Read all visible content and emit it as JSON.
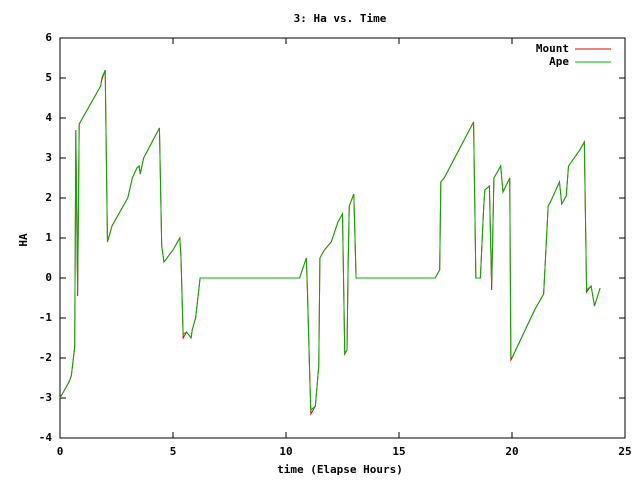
{
  "chart_data": {
    "type": "line",
    "title": "3: Ha vs. Time",
    "xlabel": "time (Elapse Hours)",
    "ylabel": "HA",
    "x": [
      0,
      0.4,
      0.5,
      0.65,
      0.7,
      0.78,
      0.85,
      0.9,
      1.5,
      1.8,
      1.85,
      2.0,
      2.1,
      2.3,
      3.0,
      3.2,
      3.4,
      3.5,
      3.55,
      3.7,
      4.4,
      4.5,
      4.6,
      5.0,
      5.3,
      5.35,
      5.45,
      5.6,
      5.8,
      5.85,
      6.0,
      6.2,
      10.6,
      10.9,
      10.95,
      11.05,
      11.1,
      11.3,
      11.45,
      11.5,
      11.6,
      11.7,
      12.0,
      12.3,
      12.5,
      12.6,
      12.7,
      12.75,
      12.8,
      13.0,
      13.1,
      16.6,
      16.8,
      16.85,
      17.0,
      18.3,
      18.4,
      18.6,
      18.75,
      18.8,
      19.0,
      19.1,
      19.2,
      19.5,
      19.6,
      19.9,
      19.95,
      20.0,
      21.0,
      21.4,
      21.6,
      21.7,
      22.1,
      22.2,
      22.4,
      22.5,
      23.0,
      23.2,
      23.3,
      23.5,
      23.65,
      23.9
    ],
    "series": [
      {
        "name": "Mount",
        "color": "#e00000",
        "values": [
          -3,
          -2.6,
          -2.45,
          -1.75,
          3.7,
          -0.45,
          3.85,
          3.9,
          4.5,
          4.8,
          4.95,
          5.2,
          0.9,
          1.3,
          2.0,
          2.5,
          2.75,
          2.8,
          2.6,
          3.0,
          3.75,
          0.8,
          0.4,
          0.7,
          1.0,
          0.55,
          -1.5,
          -1.35,
          -1.5,
          -1.3,
          -1.0,
          0,
          0,
          0.5,
          -0.4,
          -2.4,
          -3.4,
          -3.2,
          -2.2,
          0.5,
          0.6,
          0.7,
          0.9,
          1.4,
          1.6,
          -1.9,
          -1.8,
          0.35,
          1.8,
          2.1,
          0,
          0,
          0.2,
          2.4,
          2.5,
          3.9,
          0,
          0,
          1.8,
          2.2,
          2.3,
          -0.3,
          2.5,
          2.8,
          2.15,
          2.5,
          -2.05,
          -2.0,
          -0.8,
          -0.4,
          1.8,
          1.9,
          2.4,
          1.85,
          2.05,
          2.8,
          3.2,
          3.4,
          -0.35,
          -0.2,
          -0.7,
          -0.25
        ]
      },
      {
        "name": "Ape",
        "color": "#00b000",
        "values": [
          -3,
          -2.6,
          -2.45,
          -1.7,
          3.7,
          -0.4,
          3.85,
          3.9,
          4.5,
          4.8,
          5.0,
          5.2,
          0.9,
          1.3,
          2.0,
          2.5,
          2.75,
          2.8,
          2.6,
          3.0,
          3.75,
          0.8,
          0.4,
          0.7,
          1.0,
          0.6,
          -1.4,
          -1.35,
          -1.5,
          -1.3,
          -1.0,
          0,
          0,
          0.5,
          -0.3,
          -2.5,
          -3.3,
          -3.2,
          -2.2,
          0.5,
          0.6,
          0.7,
          0.9,
          1.4,
          1.6,
          -1.9,
          -1.8,
          0.4,
          1.8,
          2.1,
          0,
          0,
          0.2,
          2.4,
          2.5,
          3.9,
          0,
          0,
          1.8,
          2.2,
          2.3,
          -0.2,
          2.5,
          2.8,
          2.15,
          2.5,
          -2.0,
          -2.0,
          -0.8,
          -0.4,
          1.8,
          1.9,
          2.4,
          1.85,
          2.05,
          2.8,
          3.2,
          3.4,
          -0.3,
          -0.2,
          -0.7,
          -0.25
        ]
      }
    ],
    "xlim": [
      0,
      25
    ],
    "xticks": [
      0,
      5,
      10,
      15,
      20,
      25
    ],
    "ylim": [
      -4,
      6
    ],
    "yticks": [
      -4,
      -3,
      -2,
      -1,
      0,
      1,
      2,
      3,
      4,
      5,
      6
    ],
    "legend": "top-right"
  }
}
